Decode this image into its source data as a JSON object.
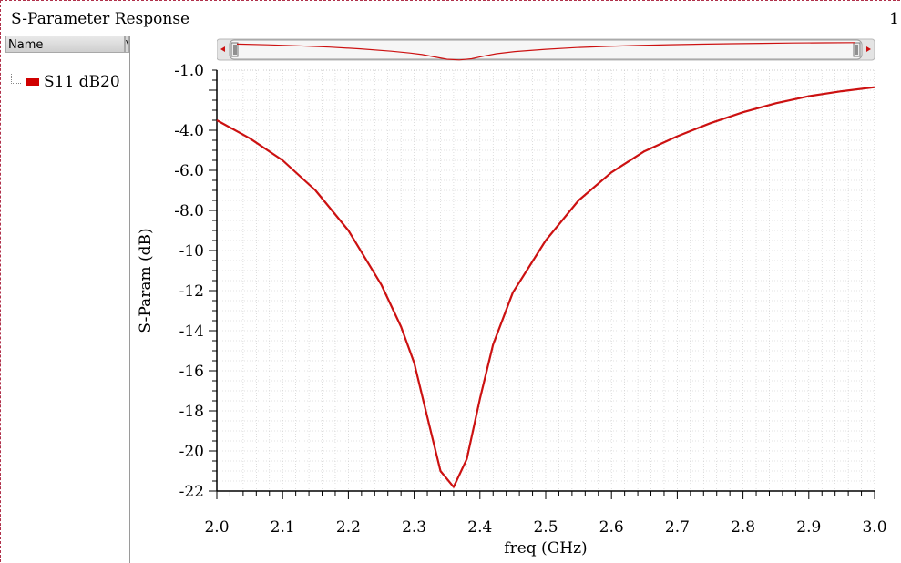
{
  "window": {
    "title": "S-Parameter Response",
    "page_number": "1"
  },
  "tree": {
    "column_header": "Name",
    "column_header_2": "V",
    "items": [
      {
        "label": "S11 dB20",
        "color": "#d00000"
      }
    ]
  },
  "chart_data": {
    "type": "line",
    "xlabel": "freq (GHz)",
    "ylabel": "S-Param (dB)",
    "xlim": [
      2.0,
      3.0
    ],
    "ylim": [
      -22,
      -1.0
    ],
    "xticks": [
      2.0,
      2.1,
      2.2,
      2.3,
      2.4,
      2.5,
      2.6,
      2.7,
      2.8,
      2.9,
      3.0
    ],
    "xtick_labels": [
      "2.0",
      "2.1",
      "2.2",
      "2.3",
      "2.4",
      "2.5",
      "2.6",
      "2.7",
      "2.8",
      "2.9",
      "3.0"
    ],
    "yticks": [
      -1.0,
      -4.0,
      -6.0,
      -8.0,
      -10,
      -12,
      -14,
      -16,
      -18,
      -20,
      -22
    ],
    "ytick_labels": [
      "-1.0",
      "-4.0",
      "-6.0",
      "-8.0",
      "-10",
      "-12",
      "-14",
      "-16",
      "-18",
      "-20",
      "-22"
    ],
    "grid": true,
    "series": [
      {
        "name": "S11 dB20",
        "color": "#cc1111",
        "x": [
          2.0,
          2.05,
          2.1,
          2.15,
          2.2,
          2.25,
          2.28,
          2.3,
          2.32,
          2.34,
          2.36,
          2.38,
          2.4,
          2.42,
          2.45,
          2.5,
          2.55,
          2.6,
          2.65,
          2.7,
          2.75,
          2.8,
          2.85,
          2.9,
          2.95,
          3.0
        ],
        "y": [
          -3.5,
          -4.4,
          -5.5,
          -7.0,
          -9.0,
          -11.7,
          -13.8,
          -15.6,
          -18.3,
          -21.0,
          -21.8,
          -20.4,
          -17.4,
          -14.7,
          -12.1,
          -9.5,
          -7.5,
          -6.1,
          -5.05,
          -4.3,
          -3.65,
          -3.1,
          -2.65,
          -2.3,
          -2.05,
          -1.85
        ]
      }
    ]
  }
}
